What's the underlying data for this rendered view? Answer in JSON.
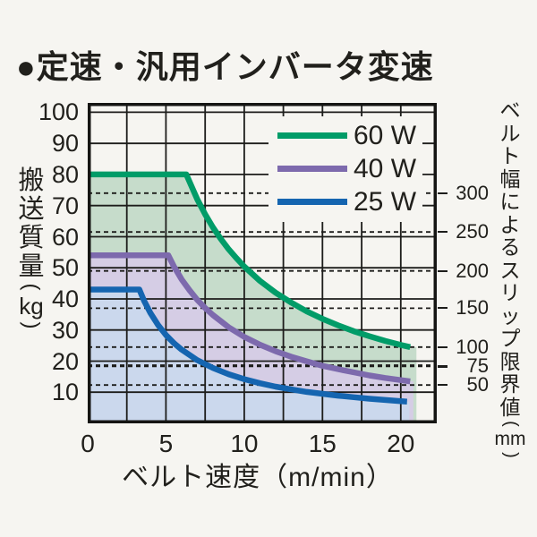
{
  "title": "●定速・汎用インバータ変速",
  "colors": {
    "background": "#f6f5f1",
    "text": "#21201c",
    "grid": "#1d1d1b",
    "frame": "#151513",
    "series_60w": "#009c68",
    "series_60w_fill": "#c6dccb",
    "series_40w": "#7d6aad",
    "series_40w_fill": "#d5cde5",
    "series_25w": "#1565b0",
    "series_25w_fill": "#cbd8ed"
  },
  "chart_data": {
    "type": "area",
    "title": "定速・汎用インバータ変速",
    "grid": "on",
    "x_axis": {
      "label": "ベルト速度（m/min）",
      "unit": "m/min",
      "ticks": [
        0,
        5,
        10,
        15,
        20
      ],
      "minor_gridline_step": 2.5,
      "range": [
        0,
        22.3
      ]
    },
    "y_axis": {
      "label": "搬送質量",
      "unit": "kg",
      "paren_open": "(",
      "paren_close": ")",
      "ticks": [
        100,
        90,
        80,
        70,
        60,
        50,
        40,
        30,
        20,
        10
      ],
      "gridline_step": 10,
      "range": [
        0,
        103
      ]
    },
    "right_axis": {
      "label": "ベルト幅によるスリップ限界値",
      "unit": "mm",
      "paren_open": "(",
      "paren_close": ")",
      "entries": [
        {
          "belt_width_mm": 300,
          "mass_kg": 74,
          "bold": false
        },
        {
          "belt_width_mm": 250,
          "mass_kg": 61.5,
          "bold": false
        },
        {
          "belt_width_mm": 200,
          "mass_kg": 49,
          "bold": false
        },
        {
          "belt_width_mm": 150,
          "mass_kg": 37,
          "bold": false
        },
        {
          "belt_width_mm": 100,
          "mass_kg": 24.5,
          "bold": false
        },
        {
          "belt_width_mm": 75,
          "mass_kg": 18.5,
          "bold": true
        },
        {
          "belt_width_mm": 50,
          "mass_kg": 12.3,
          "bold": false
        }
      ]
    },
    "legend": {
      "position": "top-right",
      "items": [
        "60 W",
        "40 W",
        "25 W"
      ]
    },
    "series": [
      {
        "name": "60 W",
        "color": "#009c68",
        "fill": "#c6dccb",
        "flat_mass_kg": 80,
        "flat_until_x": 6.3,
        "fill_end_x": 21.0,
        "points": [
          [
            0,
            80
          ],
          [
            6.3,
            80
          ],
          [
            7,
            72
          ],
          [
            7.5,
            67.2
          ],
          [
            8,
            63
          ],
          [
            8.5,
            59.3
          ],
          [
            9,
            56
          ],
          [
            9.5,
            53.1
          ],
          [
            10,
            50.4
          ],
          [
            11,
            45.8
          ],
          [
            12,
            42
          ],
          [
            13,
            38.8
          ],
          [
            14,
            36
          ],
          [
            15,
            33.6
          ],
          [
            16,
            31.5
          ],
          [
            17,
            29.6
          ],
          [
            18,
            28
          ],
          [
            19,
            26.5
          ],
          [
            20,
            25.2
          ],
          [
            20.6,
            24.5
          ]
        ]
      },
      {
        "name": "40 W",
        "color": "#7d6aad",
        "fill": "#d5cde5",
        "flat_mass_kg": 54,
        "flat_until_x": 5.15,
        "fill_end_x": 20.8,
        "points": [
          [
            0,
            54
          ],
          [
            5.15,
            54
          ],
          [
            5.5,
            50.5
          ],
          [
            6,
            46.3
          ],
          [
            6.5,
            42.8
          ],
          [
            7,
            39.7
          ],
          [
            7.5,
            37.1
          ],
          [
            8,
            34.8
          ],
          [
            9,
            30.9
          ],
          [
            10,
            27.8
          ],
          [
            11,
            25.3
          ],
          [
            12,
            23.2
          ],
          [
            13,
            21.4
          ],
          [
            14,
            19.9
          ],
          [
            15,
            18.5
          ],
          [
            16,
            17.4
          ],
          [
            17,
            16.4
          ],
          [
            18,
            15.4
          ],
          [
            19,
            14.6
          ],
          [
            20,
            13.9
          ],
          [
            20.6,
            13.5
          ]
        ]
      },
      {
        "name": "25 W",
        "color": "#1565b0",
        "fill": "#cbd8ed",
        "flat_mass_kg": 43,
        "flat_until_x": 3.3,
        "fill_end_x": 20.55,
        "points": [
          [
            0,
            43
          ],
          [
            3.3,
            43
          ],
          [
            3.6,
            39.4
          ],
          [
            4,
            35.5
          ],
          [
            4.5,
            31.6
          ],
          [
            5,
            28.4
          ],
          [
            5.5,
            25.8
          ],
          [
            6,
            23.7
          ],
          [
            7,
            20.3
          ],
          [
            8,
            17.8
          ],
          [
            9,
            15.8
          ],
          [
            10,
            14.2
          ],
          [
            11,
            12.9
          ],
          [
            12,
            11.8
          ],
          [
            13,
            10.9
          ],
          [
            14,
            10.1
          ],
          [
            15,
            9.5
          ],
          [
            16,
            8.9
          ],
          [
            17,
            8.4
          ],
          [
            18,
            7.9
          ],
          [
            19,
            7.5
          ],
          [
            20,
            7.1
          ],
          [
            20.4,
            7.0
          ]
        ]
      }
    ]
  }
}
